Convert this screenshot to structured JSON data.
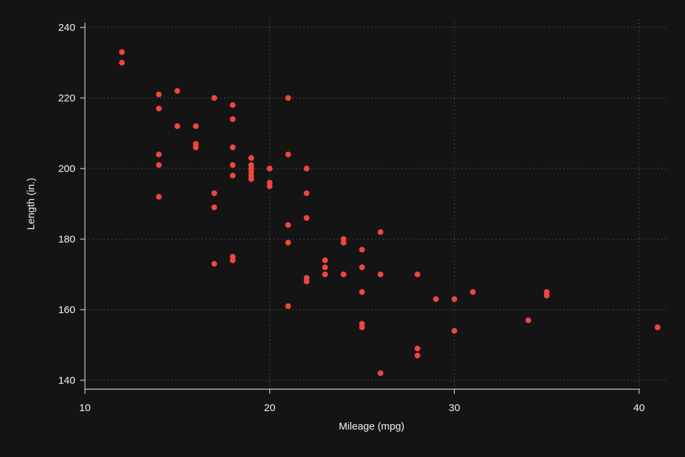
{
  "chart_data": {
    "type": "scatter",
    "xlabel": "Mileage (mpg)",
    "ylabel": "Length (in.)",
    "xlim": [
      10,
      41
    ],
    "ylim": [
      140,
      240
    ],
    "x_ticks": [
      10,
      20,
      30,
      40
    ],
    "y_ticks": [
      140,
      160,
      180,
      200,
      220,
      240
    ],
    "grid": true,
    "grid_style": "dotted",
    "colors": {
      "background": "#141414",
      "marker": "#f0463c",
      "grid": "#5a5a5a",
      "text": "#f2f2f2",
      "axis": "#cccccc"
    },
    "points": [
      [
        12,
        233
      ],
      [
        12,
        230
      ],
      [
        14,
        221
      ],
      [
        14,
        217
      ],
      [
        14,
        204
      ],
      [
        14,
        201
      ],
      [
        14,
        192
      ],
      [
        15,
        222
      ],
      [
        15,
        212
      ],
      [
        16,
        212
      ],
      [
        16,
        207
      ],
      [
        16,
        206
      ],
      [
        17,
        220
      ],
      [
        17,
        193
      ],
      [
        17,
        189
      ],
      [
        17,
        173
      ],
      [
        18,
        218
      ],
      [
        18,
        214
      ],
      [
        18,
        206
      ],
      [
        18,
        201
      ],
      [
        18,
        198
      ],
      [
        18,
        175
      ],
      [
        18,
        174
      ],
      [
        19,
        203
      ],
      [
        19,
        201
      ],
      [
        19,
        200
      ],
      [
        19,
        199
      ],
      [
        19,
        198
      ],
      [
        19,
        197
      ],
      [
        20,
        200
      ],
      [
        20,
        196
      ],
      [
        20,
        195
      ],
      [
        21,
        220
      ],
      [
        21,
        204
      ],
      [
        21,
        184
      ],
      [
        21,
        179
      ],
      [
        21,
        161
      ],
      [
        22,
        200
      ],
      [
        22,
        193
      ],
      [
        22,
        186
      ],
      [
        22,
        169
      ],
      [
        22,
        168
      ],
      [
        23,
        174
      ],
      [
        23,
        172
      ],
      [
        23,
        170
      ],
      [
        24,
        180
      ],
      [
        24,
        179
      ],
      [
        24,
        170
      ],
      [
        25,
        177
      ],
      [
        25,
        172
      ],
      [
        25,
        165
      ],
      [
        25,
        156
      ],
      [
        25,
        155
      ],
      [
        26,
        182
      ],
      [
        26,
        170
      ],
      [
        26,
        142
      ],
      [
        28,
        170
      ],
      [
        28,
        149
      ],
      [
        28,
        147
      ],
      [
        29,
        163
      ],
      [
        30,
        163
      ],
      [
        30,
        154
      ],
      [
        31,
        165
      ],
      [
        34,
        157
      ],
      [
        35,
        165
      ],
      [
        35,
        164
      ],
      [
        41,
        155
      ]
    ]
  }
}
